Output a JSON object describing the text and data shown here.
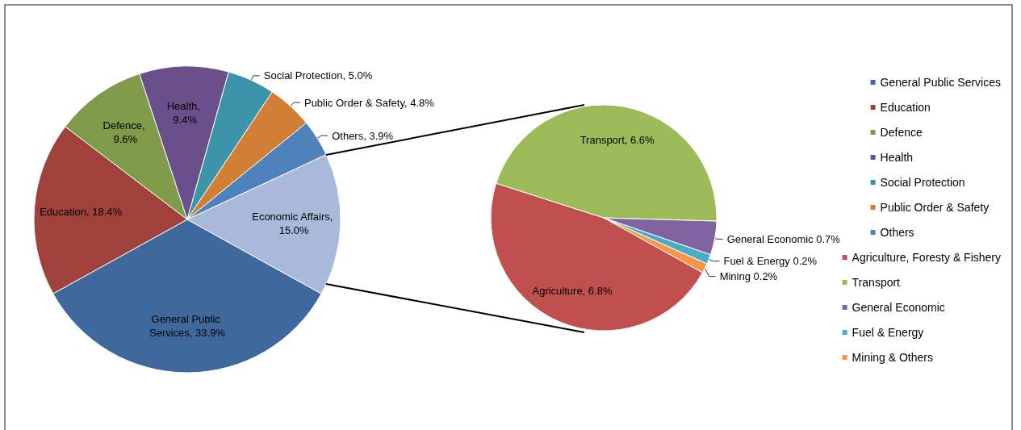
{
  "chart_data": [
    {
      "type": "pie",
      "legend": "right",
      "categories": [
        "General Public Services",
        "Education",
        "Defence",
        "Health",
        "Social Protection",
        "Public Order & Safety",
        "Others",
        null
      ],
      "values": [
        33.9,
        18.4,
        9.6,
        9.4,
        5.0,
        4.8,
        3.9,
        15.0
      ],
      "colors": [
        "#3f689c",
        "#a0413c",
        "#7f9a48",
        "#6a4f8a",
        "#3d93a8",
        "#d07f35",
        "#4f81bd",
        "#a9b9d9"
      ],
      "value_labels": [
        "General Public Services, 33.9%",
        "Education, 18.4%",
        "Defence, 9.6%",
        "Health, 9.4%",
        "Social Protection, 5.0%",
        "Public Order & Safety, 4.8%",
        "Others, 3.9%",
        "Economic Affairs, 15.0%"
      ]
    },
    {
      "type": "pie",
      "legend": "right",
      "categories": [
        "Agriculture, Foresty & Fishery",
        "Transport",
        "General Economic",
        "Fuel & Energy",
        "Mining & Others"
      ],
      "values": [
        6.8,
        6.6,
        0.7,
        0.2,
        0.2
      ],
      "colors": [
        "#c0504d",
        "#9bbb59",
        "#8064a2",
        "#4bacc6",
        "#f79646"
      ],
      "value_labels": [
        "Agriculture, 6.8%",
        "Transport, 6.6%",
        "General Economic 0.7%",
        "Fuel & Energy 0.2%",
        "Mining 0.2%"
      ]
    }
  ]
}
